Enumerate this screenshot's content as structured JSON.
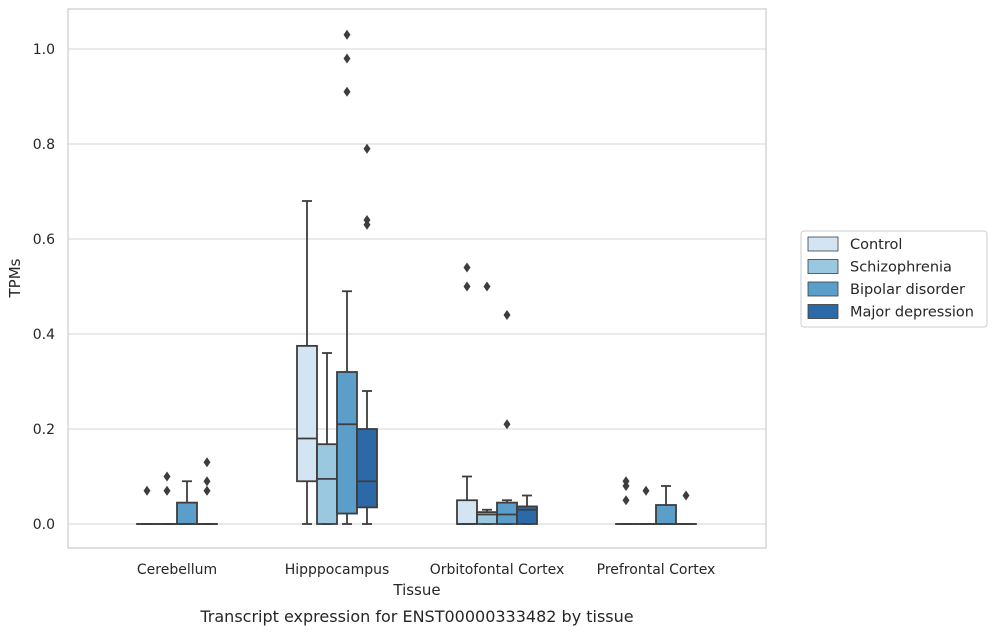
{
  "chart_data": {
    "type": "box",
    "xlabel": "Tissue",
    "ylabel": "TPMs",
    "caption": "Transcript expression for ENST00000333482 by tissue",
    "ylim": [
      -0.05,
      1.08
    ],
    "yticks": [
      "0.0",
      "0.2",
      "0.4",
      "0.6",
      "0.8",
      "1.0"
    ],
    "grid": "horizontal",
    "legend_position": "right-outside",
    "categories": [
      "Cerebellum",
      "Hipppocampus",
      "Orbitofontal Cortex",
      "Prefrontal Cortex"
    ],
    "series": [
      {
        "name": "Control",
        "color": "#d3e4f3",
        "boxes": [
          {
            "whislo": 0,
            "q1": 0,
            "med": 0,
            "q3": 0,
            "whishi": 0,
            "fliers": [
              0.07
            ]
          },
          {
            "whislo": 0,
            "q1": 0.09,
            "med": 0.18,
            "q3": 0.375,
            "whishi": 0.68,
            "fliers": []
          },
          {
            "whislo": 0,
            "q1": 0,
            "med": 0,
            "q3": 0.05,
            "whishi": 0.1,
            "fliers": [
              0.54,
              0.5
            ]
          },
          {
            "whislo": 0,
            "q1": 0,
            "med": 0,
            "q3": 0,
            "whishi": 0,
            "fliers": [
              0.09,
              0.08,
              0.05
            ]
          }
        ]
      },
      {
        "name": "Schizophrenia",
        "color": "#9ac8e0",
        "boxes": [
          {
            "whislo": 0,
            "q1": 0,
            "med": 0,
            "q3": 0,
            "whishi": 0,
            "fliers": [
              0.1,
              0.07
            ]
          },
          {
            "whislo": 0,
            "q1": 0,
            "med": 0.095,
            "q3": 0.168,
            "whishi": 0.36,
            "fliers": []
          },
          {
            "whislo": 0,
            "q1": 0,
            "med": 0.02,
            "q3": 0.025,
            "whishi": 0.03,
            "fliers": [
              0.5
            ]
          },
          {
            "whislo": 0,
            "q1": 0,
            "med": 0,
            "q3": 0,
            "whishi": 0,
            "fliers": [
              0.07
            ]
          }
        ]
      },
      {
        "name": "Bipolar disorder",
        "color": "#5a9ec9",
        "boxes": [
          {
            "whislo": 0,
            "q1": 0,
            "med": 0,
            "q3": 0.045,
            "whishi": 0.09,
            "fliers": []
          },
          {
            "whislo": 0,
            "q1": 0.022,
            "med": 0.21,
            "q3": 0.32,
            "whishi": 0.49,
            "fliers": [
              1.03,
              0.98,
              0.91
            ]
          },
          {
            "whislo": 0,
            "q1": 0,
            "med": 0.02,
            "q3": 0.045,
            "whishi": 0.05,
            "fliers": [
              0.44,
              0.21
            ]
          },
          {
            "whislo": 0,
            "q1": 0,
            "med": 0,
            "q3": 0.04,
            "whishi": 0.08,
            "fliers": []
          }
        ]
      },
      {
        "name": "Major depression",
        "color": "#2b6aa6",
        "boxes": [
          {
            "whislo": 0,
            "q1": 0,
            "med": 0,
            "q3": 0,
            "whishi": 0,
            "fliers": [
              0.13,
              0.09,
              0.07
            ]
          },
          {
            "whislo": 0,
            "q1": 0.035,
            "med": 0.09,
            "q3": 0.2,
            "whishi": 0.28,
            "fliers": [
              0.79,
              0.64,
              0.63
            ]
          },
          {
            "whislo": 0,
            "q1": 0,
            "med": 0.03,
            "q3": 0.037,
            "whishi": 0.06,
            "fliers": []
          },
          {
            "whislo": 0,
            "q1": 0,
            "med": 0,
            "q3": 0,
            "whishi": 0,
            "fliers": [
              0.06
            ]
          }
        ]
      }
    ]
  }
}
